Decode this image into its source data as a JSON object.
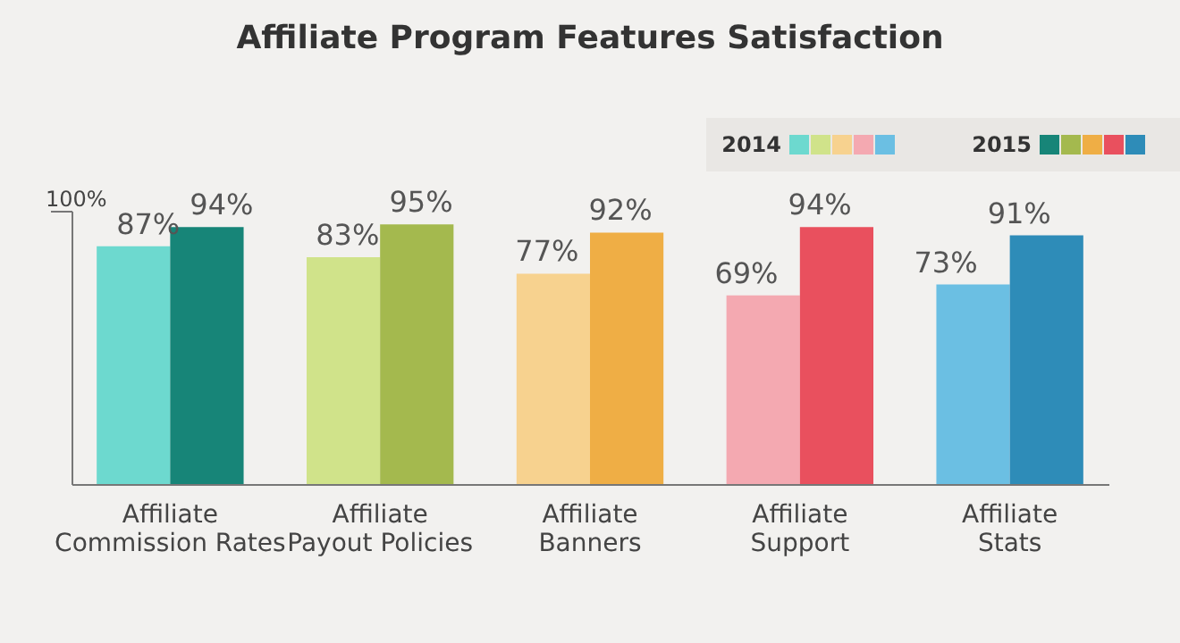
{
  "chart_data": {
    "type": "bar",
    "title": "Affiliate Program Features Satisfaction",
    "categories": [
      "Affiliate Commission Rates",
      "Affiliate Payout Policies",
      "Affiliate Banners",
      "Affiliate Support",
      "Affiliate Stats"
    ],
    "series": [
      {
        "name": "2014",
        "colors": [
          "#6dd9cf",
          "#d0e38a",
          "#f7d28f",
          "#f4a9b1",
          "#6bbfe3"
        ],
        "values": [
          87,
          83,
          77,
          69,
          73
        ],
        "value_labels": [
          "87%",
          "83%",
          "77%",
          "69%",
          "73%"
        ]
      },
      {
        "name": "2015",
        "colors": [
          "#178578",
          "#a4b94e",
          "#efae45",
          "#e9505e",
          "#2e8cb8"
        ],
        "values": [
          94,
          95,
          92,
          94,
          91
        ],
        "value_labels": [
          "94%",
          "95%",
          "92%",
          "94%",
          "91%"
        ]
      }
    ],
    "ylim": [
      0,
      100
    ],
    "yticks": [
      {
        "value": 100,
        "label": "100%"
      }
    ],
    "legend": "top right"
  }
}
